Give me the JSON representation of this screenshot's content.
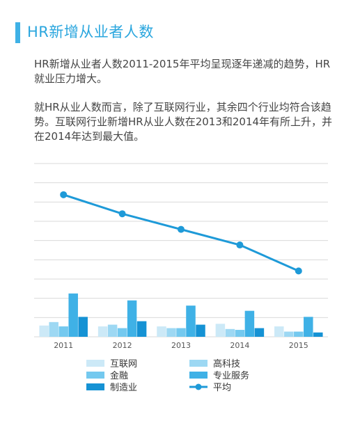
{
  "header": {
    "title": "HR新增从业者人数"
  },
  "body": {
    "paragraph1": "HR新增从业者人数2011-2015年平均呈现逐年递减的趋势，HR就业压力增大。",
    "paragraph2": "就HR从业人数而言，除了互联网行业，其余四个行业均符合该趋势。互联网行业新增HR从业人数在2013和2014年有所上升，并在2014年达到最大值。"
  },
  "colors": {
    "accent": "#3fb1e6",
    "grid": "#d9d9d9"
  },
  "chart_data": {
    "type": "bar",
    "categories": [
      "2011",
      "2012",
      "2013",
      "2014",
      "2015"
    ],
    "ylim": [
      0,
      100
    ],
    "grid": true,
    "legend_position": "bottom",
    "series": [
      {
        "name": "互联网",
        "type": "bar",
        "color": "#cce9f7",
        "values": [
          6.5,
          6,
          6,
          7.5,
          6
        ]
      },
      {
        "name": "高科技",
        "type": "bar",
        "color": "#9dd8f3",
        "values": [
          8.5,
          7,
          5,
          4.5,
          3
        ]
      },
      {
        "name": "金融",
        "type": "bar",
        "color": "#74c9ef",
        "values": [
          6,
          5,
          5,
          4,
          3
        ]
      },
      {
        "name": "专业服务",
        "type": "bar",
        "color": "#3fb1e6",
        "values": [
          25,
          21,
          18,
          15,
          11.5
        ]
      },
      {
        "name": "制造业",
        "type": "bar",
        "color": "#1592d4",
        "values": [
          11.5,
          9,
          7,
          5,
          2.5
        ]
      },
      {
        "name": "平均",
        "type": "line",
        "color": "#1e9ad8",
        "values": [
          82,
          71,
          62,
          53,
          38
        ]
      }
    ]
  }
}
